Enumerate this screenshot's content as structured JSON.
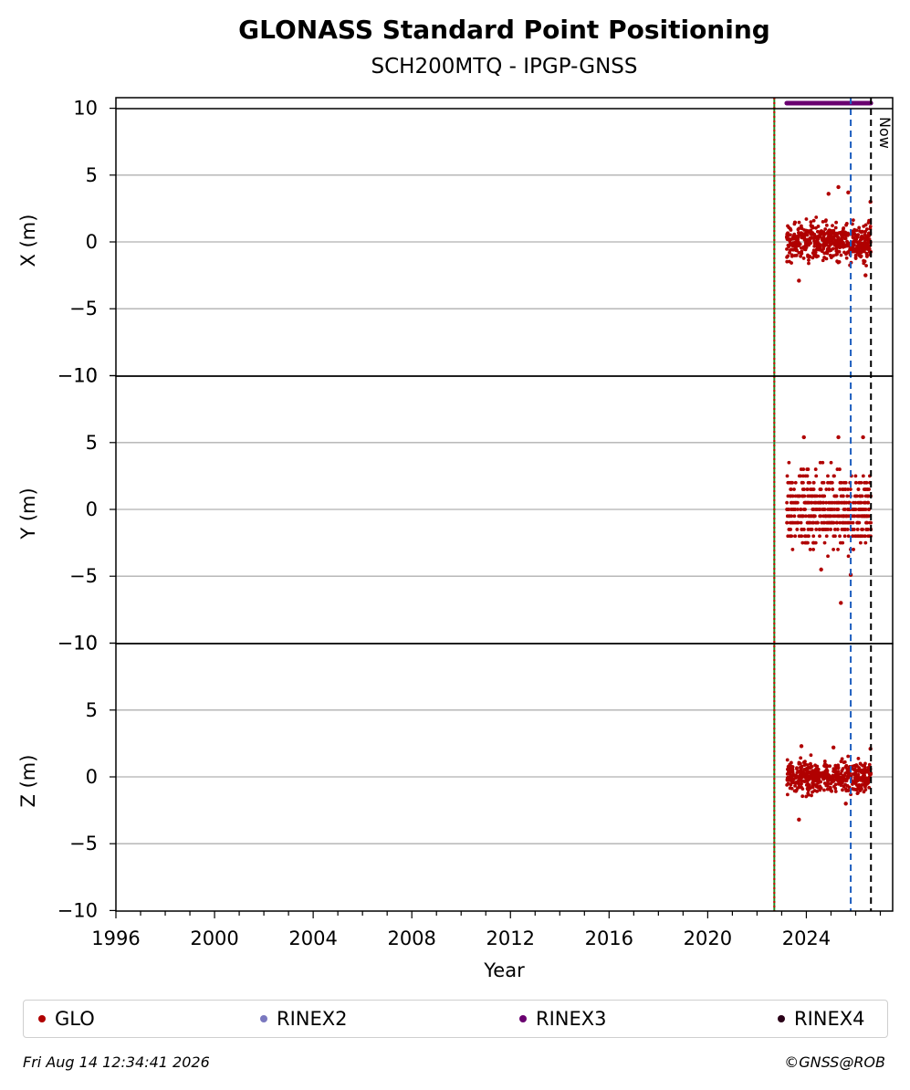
{
  "header": {
    "title": "GLONASS Standard Point Positioning",
    "subtitle": "SCH200MTQ - IPGP-GNSS"
  },
  "chart_data": {
    "type": "scatter",
    "xlabel": "Year",
    "xlim": [
      1996,
      2027.5
    ],
    "x_ticks": [
      "1996",
      "2000",
      "2004",
      "2008",
      "2012",
      "2016",
      "2020",
      "2024"
    ],
    "grid": "horizontal",
    "panels": [
      {
        "ylabel": "X (m)",
        "ylim": [
          -10,
          10
        ],
        "y_ticks": [
          "10",
          "5",
          "0",
          "−5",
          "−10"
        ],
        "spread": 1.0,
        "outliers": [
          [
            2023.7,
            -2.9
          ],
          [
            2025.3,
            4.1
          ],
          [
            2025.7,
            3.7
          ],
          [
            2026.6,
            3.0
          ],
          [
            2024.9,
            3.6
          ],
          [
            2026.4,
            -2.5
          ]
        ]
      },
      {
        "ylabel": "Y (m)",
        "ylim": [
          -10,
          10
        ],
        "y_ticks": [
          "10",
          "5",
          "0",
          "−5",
          "−10"
        ],
        "spread": 2.0,
        "outliers": [
          [
            2023.9,
            5.4
          ],
          [
            2025.3,
            5.4
          ],
          [
            2025.4,
            -7.0
          ],
          [
            2026.3,
            5.4
          ],
          [
            2025.8,
            -4.9
          ],
          [
            2024.6,
            -4.5
          ]
        ]
      },
      {
        "ylabel": "Z (m)",
        "ylim": [
          -10,
          10
        ],
        "y_ticks": [
          "10",
          "5",
          "0",
          "−5",
          "−10"
        ],
        "spread": 0.8,
        "outliers": [
          [
            2023.7,
            -3.2
          ],
          [
            2023.8,
            2.3
          ],
          [
            2025.1,
            2.2
          ],
          [
            2026.6,
            2.1
          ],
          [
            2025.6,
            -2.0
          ]
        ]
      }
    ],
    "series": [
      {
        "name": "GLO",
        "x_start": 2023.2,
        "x_end": 2026.62,
        "color": "#b00000"
      }
    ],
    "rinex3_bar": {
      "x_start": 2023.2,
      "x_end": 2026.62,
      "y": 10.4,
      "color": "#6a0070"
    },
    "vlines": [
      {
        "x": 2022.7,
        "color": "#228b22",
        "style": "solid"
      },
      {
        "x": 2022.7,
        "color": "#cc0000",
        "style": "dotted"
      },
      {
        "x": 2025.8,
        "color": "#1f5fbf",
        "style": "dashed"
      },
      {
        "x": 2026.62,
        "color": "#000000",
        "style": "dashed",
        "label": "Now"
      }
    ],
    "legend": {
      "position": "bottom",
      "entries": [
        {
          "name": "GLO",
          "color": "#b00000"
        },
        {
          "name": "RINEX2",
          "color": "#7a78bf"
        },
        {
          "name": "RINEX3",
          "color": "#6a0070"
        },
        {
          "name": "RINEX4",
          "color": "#2a0018"
        }
      ]
    }
  },
  "footer": {
    "timestamp": "Fri Aug 14 12:34:41 2026",
    "copyright": "©GNSS@ROB"
  }
}
